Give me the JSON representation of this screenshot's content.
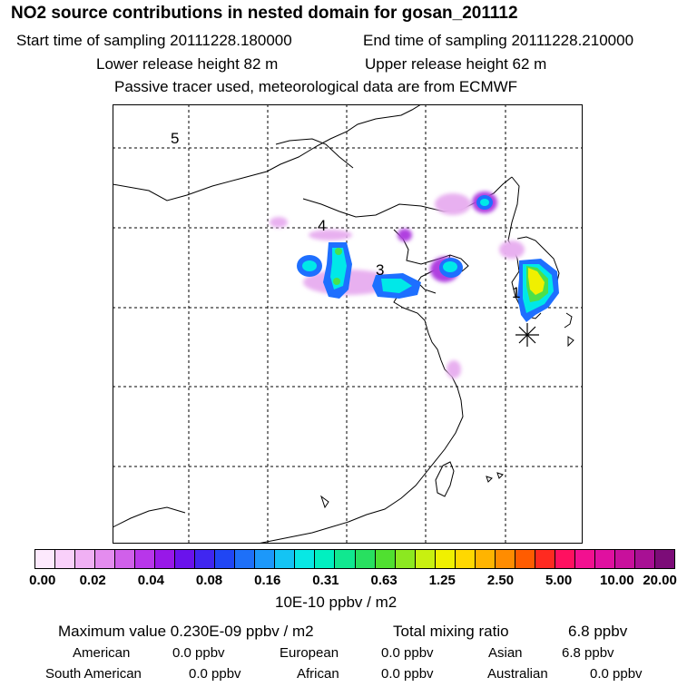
{
  "header": {
    "title": "NO2 source contributions in nested domain for gosan_201112",
    "start_time": "Start time of sampling 20111228.180000",
    "end_time": "End time of sampling 20111228.210000",
    "lower_release": "Lower release height   82 m",
    "upper_release": "Upper release height   62 m",
    "tracer_note": "Passive tracer used, meteorological data are from ECMWF"
  },
  "map": {
    "region_labels": [
      "1",
      "3",
      "4",
      "5"
    ],
    "colors": {
      "lightviolet": "#e8b0f0",
      "purple": "#b040e0",
      "blue": "#1e6fff",
      "cyan": "#00e8e8",
      "green": "#4be04b",
      "yellow": "#f0f000"
    }
  },
  "colorbar": {
    "colors": [
      "#fde9fd",
      "#f9d0fa",
      "#f0b0f4",
      "#e48cef",
      "#d060ea",
      "#b836ea",
      "#9818e8",
      "#6a12ec",
      "#4026f0",
      "#2046f4",
      "#1e70f8",
      "#1c98fa",
      "#14c4f4",
      "#08e8e4",
      "#00f0c0",
      "#10e890",
      "#28e060",
      "#50e030",
      "#8ce820",
      "#c8f010",
      "#f0f000",
      "#ffd800",
      "#ffb400",
      "#ff8c00",
      "#ff5c00",
      "#ff2a20",
      "#ff1060",
      "#f21090",
      "#e010a0",
      "#c8109c",
      "#a81094",
      "#7c0c78"
    ],
    "tick_labels": [
      "0.00",
      "0.02",
      "0.04",
      "0.08",
      "0.16",
      "0.31",
      "0.63",
      "1.25",
      "2.50",
      "5.00",
      "10.00",
      "20.00"
    ],
    "unit": "10E-10 ppbv / m2"
  },
  "summary": {
    "maximum_label": "Maximum value  0.230E-09 ppbv / m2",
    "total_label": "Total mixing ratio",
    "total_value": "6.8 ppbv",
    "regions": [
      {
        "name": "American",
        "value": "0.0 ppbv"
      },
      {
        "name": "European",
        "value": "0.0 ppbv"
      },
      {
        "name": "Asian",
        "value": "6.8 ppbv"
      },
      {
        "name": "South American",
        "value": "0.0 ppbv"
      },
      {
        "name": "African",
        "value": "0.0 ppbv"
      },
      {
        "name": "Australian",
        "value": "0.0 ppbv"
      }
    ]
  }
}
